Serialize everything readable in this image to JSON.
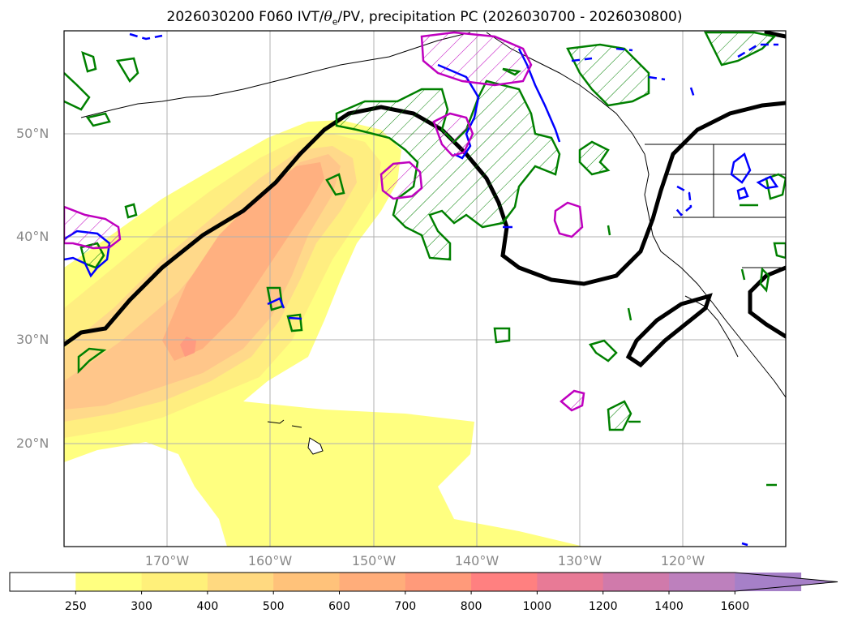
{
  "title": {
    "prefix": "2026030200 F060 IVT/",
    "theta": "θ",
    "theta_sub": "e",
    "suffix": "/PV, precipitation PC (2026030700 - 2026030800)"
  },
  "map": {
    "region": "North Pacific",
    "lat_labels": [
      "50°N",
      "40°N",
      "30°N",
      "20°N"
    ],
    "lon_labels": [
      "170°W",
      "160°W",
      "150°W",
      "140°W",
      "130°W",
      "120°W"
    ],
    "gridlines": true,
    "layers": {
      "ivt_fill": "IVT shaded (yellow-orange)",
      "theta_pv_contour": "thick black line",
      "precip_pc_positive": "green contours with hatching",
      "precip_pc_negative": "blue contours (solid/dashed)",
      "precip_other": "magenta contours with hatching"
    }
  },
  "colorbar": {
    "labels": [
      "250",
      "300",
      "400",
      "500",
      "600",
      "700",
      "800",
      "1000",
      "1200",
      "1400",
      "1600"
    ],
    "colors": [
      "#ffffff",
      "#ffff80",
      "#fff07a",
      "#ffd980",
      "#ffc27a",
      "#ffad7a",
      "#ff9a7a",
      "#ff8080",
      "#e87a96",
      "#d07aab",
      "#bd80bd",
      "#a680c8"
    ],
    "extend": "max"
  },
  "colors": {
    "axis_label": "#888888",
    "green": "#008000",
    "blue": "#0000ff",
    "magenta": "#bf00bf",
    "black": "#000000"
  }
}
